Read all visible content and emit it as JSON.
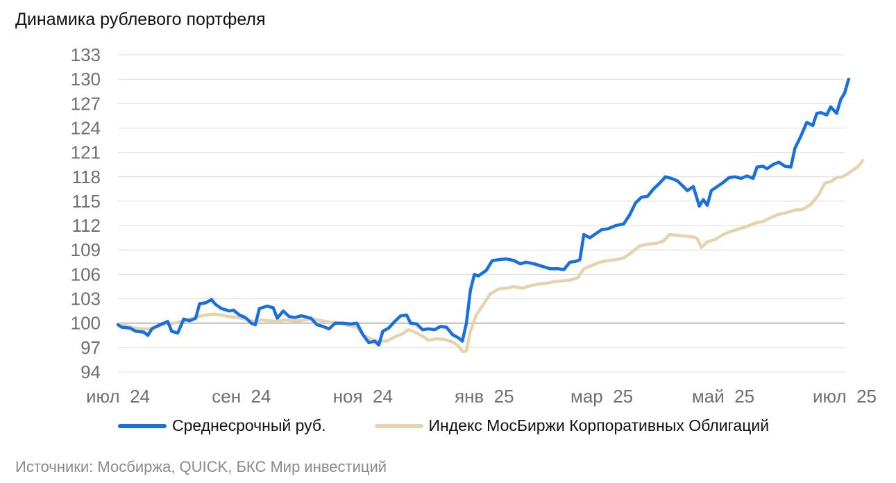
{
  "title": "Динамика рублевого портфеля",
  "source": "Источники: Мосбиржа, QUICK, БКС Мир инвестиций",
  "colors": {
    "series1": "#1a6fe0",
    "series2": "#e6d3ad",
    "grid": "#dcdcdc",
    "baseline": "#c9c9c9",
    "tick": "#6f6f6f"
  },
  "chart_data": {
    "type": "line",
    "title": "Динамика рублевого портфеля",
    "xlabel": "",
    "ylabel": "",
    "ylim": [
      94,
      133
    ],
    "yticks": [
      94,
      97,
      100,
      103,
      106,
      109,
      112,
      115,
      118,
      121,
      124,
      127,
      130,
      133
    ],
    "xlim": [
      "2024-07-01",
      "2025-07-01"
    ],
    "xticks": [
      {
        "date": "2024-07-01",
        "label": "июл  24"
      },
      {
        "date": "2024-09-01",
        "label": "сен  24"
      },
      {
        "date": "2024-11-01",
        "label": "ноя  24"
      },
      {
        "date": "2025-01-01",
        "label": "янв  25"
      },
      {
        "date": "2025-03-01",
        "label": "мар  25"
      },
      {
        "date": "2025-05-01",
        "label": "май  25"
      },
      {
        "date": "2025-07-01",
        "label": "июл  25"
      }
    ],
    "baseline": 100,
    "grid": true,
    "legend_position": "bottom",
    "series": [
      {
        "name": "Среднесрочный руб.",
        "color": "#1a6fe0",
        "points": [
          [
            "2024-07-01",
            99.8
          ],
          [
            "2024-07-03",
            99.5
          ],
          [
            "2024-07-07",
            99.4
          ],
          [
            "2024-07-10",
            99.0
          ],
          [
            "2024-07-14",
            98.9
          ],
          [
            "2024-07-16",
            98.5
          ],
          [
            "2024-07-18",
            99.3
          ],
          [
            "2024-07-22",
            99.8
          ],
          [
            "2024-07-26",
            100.2
          ],
          [
            "2024-07-28",
            99.0
          ],
          [
            "2024-07-31",
            98.8
          ],
          [
            "2024-08-03",
            100.5
          ],
          [
            "2024-08-06",
            100.3
          ],
          [
            "2024-08-09",
            100.6
          ],
          [
            "2024-08-11",
            102.4
          ],
          [
            "2024-08-14",
            102.5
          ],
          [
            "2024-08-17",
            102.9
          ],
          [
            "2024-08-19",
            102.3
          ],
          [
            "2024-08-22",
            101.8
          ],
          [
            "2024-08-26",
            101.5
          ],
          [
            "2024-08-28",
            101.6
          ],
          [
            "2024-08-31",
            101.0
          ],
          [
            "2024-09-03",
            100.7
          ],
          [
            "2024-09-06",
            100.0
          ],
          [
            "2024-09-08",
            99.8
          ],
          [
            "2024-09-10",
            101.8
          ],
          [
            "2024-09-14",
            102.1
          ],
          [
            "2024-09-17",
            101.9
          ],
          [
            "2024-09-19",
            100.6
          ],
          [
            "2024-09-22",
            101.5
          ],
          [
            "2024-09-25",
            100.8
          ],
          [
            "2024-09-28",
            100.7
          ],
          [
            "2024-10-01",
            100.9
          ],
          [
            "2024-10-03",
            100.8
          ],
          [
            "2024-10-06",
            100.6
          ],
          [
            "2024-10-09",
            99.8
          ],
          [
            "2024-10-12",
            99.6
          ],
          [
            "2024-10-15",
            99.3
          ],
          [
            "2024-10-18",
            100.0
          ],
          [
            "2024-10-22",
            100.0
          ],
          [
            "2024-10-26",
            99.9
          ],
          [
            "2024-10-29",
            100.0
          ],
          [
            "2024-11-01",
            98.6
          ],
          [
            "2024-11-04",
            97.6
          ],
          [
            "2024-11-07",
            97.8
          ],
          [
            "2024-11-09",
            97.3
          ],
          [
            "2024-11-11",
            99.0
          ],
          [
            "2024-11-14",
            99.4
          ],
          [
            "2024-11-17",
            100.2
          ],
          [
            "2024-11-20",
            100.9
          ],
          [
            "2024-11-23",
            101.0
          ],
          [
            "2024-11-25",
            100.0
          ],
          [
            "2024-11-28",
            99.9
          ],
          [
            "2024-12-01",
            99.2
          ],
          [
            "2024-12-04",
            99.3
          ],
          [
            "2024-12-07",
            99.2
          ],
          [
            "2024-12-10",
            99.6
          ],
          [
            "2024-12-13",
            99.5
          ],
          [
            "2024-12-16",
            98.6
          ],
          [
            "2024-12-19",
            98.2
          ],
          [
            "2024-12-21",
            97.8
          ],
          [
            "2024-12-23",
            100.0
          ],
          [
            "2024-12-25",
            104.0
          ],
          [
            "2024-12-27",
            106.0
          ],
          [
            "2024-12-29",
            105.8
          ],
          [
            "2025-01-02",
            106.5
          ],
          [
            "2025-01-05",
            107.7
          ],
          [
            "2025-01-08",
            107.8
          ],
          [
            "2025-01-12",
            107.9
          ],
          [
            "2025-01-16",
            107.7
          ],
          [
            "2025-01-19",
            107.3
          ],
          [
            "2025-01-22",
            107.5
          ],
          [
            "2025-01-26",
            107.3
          ],
          [
            "2025-01-30",
            107.0
          ],
          [
            "2025-02-03",
            106.7
          ],
          [
            "2025-02-07",
            106.7
          ],
          [
            "2025-02-10",
            106.6
          ],
          [
            "2025-02-13",
            107.5
          ],
          [
            "2025-02-16",
            107.6
          ],
          [
            "2025-02-18",
            107.8
          ],
          [
            "2025-02-20",
            110.9
          ],
          [
            "2025-02-23",
            110.5
          ],
          [
            "2025-02-26",
            111.0
          ],
          [
            "2025-03-01",
            111.5
          ],
          [
            "2025-03-04",
            111.6
          ],
          [
            "2025-03-08",
            112.0
          ],
          [
            "2025-03-12",
            112.2
          ],
          [
            "2025-03-15",
            113.3
          ],
          [
            "2025-03-18",
            114.8
          ],
          [
            "2025-03-21",
            115.5
          ],
          [
            "2025-03-24",
            115.6
          ],
          [
            "2025-03-27",
            116.5
          ],
          [
            "2025-03-30",
            117.2
          ],
          [
            "2025-04-02",
            118.0
          ],
          [
            "2025-04-05",
            117.8
          ],
          [
            "2025-04-08",
            117.5
          ],
          [
            "2025-04-11",
            116.8
          ],
          [
            "2025-04-13",
            116.3
          ],
          [
            "2025-04-16",
            116.8
          ],
          [
            "2025-04-19",
            114.4
          ],
          [
            "2025-04-21",
            115.2
          ],
          [
            "2025-04-23",
            114.5
          ],
          [
            "2025-04-25",
            116.3
          ],
          [
            "2025-04-28",
            116.8
          ],
          [
            "2025-05-01",
            117.3
          ],
          [
            "2025-05-04",
            117.9
          ],
          [
            "2025-05-07",
            118.0
          ],
          [
            "2025-05-10",
            117.8
          ],
          [
            "2025-05-13",
            118.1
          ],
          [
            "2025-05-16",
            117.8
          ],
          [
            "2025-05-18",
            119.2
          ],
          [
            "2025-05-21",
            119.3
          ],
          [
            "2025-05-23",
            119.0
          ],
          [
            "2025-05-26",
            119.5
          ],
          [
            "2025-05-29",
            119.8
          ],
          [
            "2025-06-01",
            119.3
          ],
          [
            "2025-06-04",
            119.2
          ],
          [
            "2025-06-06",
            121.5
          ],
          [
            "2025-06-09",
            123.0
          ],
          [
            "2025-06-12",
            124.7
          ],
          [
            "2025-06-15",
            124.3
          ],
          [
            "2025-06-17",
            125.8
          ],
          [
            "2025-06-19",
            125.9
          ],
          [
            "2025-06-22",
            125.6
          ],
          [
            "2025-06-24",
            126.6
          ],
          [
            "2025-06-27",
            125.8
          ],
          [
            "2025-06-29",
            127.5
          ],
          [
            "2025-07-01",
            128.3
          ],
          [
            "2025-07-03",
            130.0
          ]
        ]
      },
      {
        "name": "Индекс МосБиржи Корпоративных Облигаций",
        "color": "#e6d3ad",
        "points": [
          [
            "2024-07-01",
            99.9
          ],
          [
            "2024-07-05",
            99.7
          ],
          [
            "2024-07-09",
            99.4
          ],
          [
            "2024-07-13",
            99.3
          ],
          [
            "2024-07-17",
            99.3
          ],
          [
            "2024-07-21",
            99.6
          ],
          [
            "2024-07-25",
            99.9
          ],
          [
            "2024-07-29",
            100.0
          ],
          [
            "2024-08-02",
            100.2
          ],
          [
            "2024-08-06",
            100.5
          ],
          [
            "2024-08-10",
            100.8
          ],
          [
            "2024-08-14",
            101.0
          ],
          [
            "2024-08-18",
            101.1
          ],
          [
            "2024-08-22",
            101.0
          ],
          [
            "2024-08-26",
            100.8
          ],
          [
            "2024-08-30",
            100.7
          ],
          [
            "2024-09-03",
            100.5
          ],
          [
            "2024-09-07",
            100.2
          ],
          [
            "2024-09-11",
            100.4
          ],
          [
            "2024-09-15",
            100.3
          ],
          [
            "2024-09-19",
            100.2
          ],
          [
            "2024-09-23",
            100.4
          ],
          [
            "2024-09-27",
            100.3
          ],
          [
            "2024-10-01",
            100.3
          ],
          [
            "2024-10-05",
            100.5
          ],
          [
            "2024-10-09",
            100.4
          ],
          [
            "2024-10-13",
            100.2
          ],
          [
            "2024-10-17",
            100.1
          ],
          [
            "2024-10-21",
            100.0
          ],
          [
            "2024-10-25",
            99.7
          ],
          [
            "2024-10-29",
            99.5
          ],
          [
            "2024-11-01",
            98.6
          ],
          [
            "2024-11-05",
            98.0
          ],
          [
            "2024-11-09",
            97.8
          ],
          [
            "2024-11-13",
            97.8
          ],
          [
            "2024-11-17",
            98.3
          ],
          [
            "2024-11-21",
            98.7
          ],
          [
            "2024-11-24",
            99.2
          ],
          [
            "2024-11-28",
            98.8
          ],
          [
            "2024-12-01",
            98.4
          ],
          [
            "2024-12-04",
            97.9
          ],
          [
            "2024-12-08",
            98.1
          ],
          [
            "2024-12-12",
            98.0
          ],
          [
            "2024-12-16",
            97.7
          ],
          [
            "2024-12-19",
            97.2
          ],
          [
            "2024-12-21",
            96.5
          ],
          [
            "2024-12-23",
            96.6
          ],
          [
            "2024-12-25",
            99.0
          ],
          [
            "2024-12-28",
            101.0
          ],
          [
            "2025-01-01",
            102.5
          ],
          [
            "2025-01-04",
            103.6
          ],
          [
            "2025-01-08",
            104.2
          ],
          [
            "2025-01-12",
            104.3
          ],
          [
            "2025-01-16",
            104.5
          ],
          [
            "2025-01-20",
            104.3
          ],
          [
            "2025-01-24",
            104.6
          ],
          [
            "2025-01-28",
            104.8
          ],
          [
            "2025-02-01",
            104.9
          ],
          [
            "2025-02-05",
            105.1
          ],
          [
            "2025-02-09",
            105.2
          ],
          [
            "2025-02-13",
            105.3
          ],
          [
            "2025-02-17",
            105.6
          ],
          [
            "2025-02-20",
            106.7
          ],
          [
            "2025-02-24",
            107.1
          ],
          [
            "2025-02-28",
            107.5
          ],
          [
            "2025-03-04",
            107.7
          ],
          [
            "2025-03-08",
            107.8
          ],
          [
            "2025-03-12",
            108.0
          ],
          [
            "2025-03-16",
            108.7
          ],
          [
            "2025-03-20",
            109.5
          ],
          [
            "2025-03-24",
            109.7
          ],
          [
            "2025-03-28",
            109.8
          ],
          [
            "2025-04-01",
            110.1
          ],
          [
            "2025-04-04",
            110.9
          ],
          [
            "2025-04-08",
            110.8
          ],
          [
            "2025-04-12",
            110.7
          ],
          [
            "2025-04-16",
            110.6
          ],
          [
            "2025-04-18",
            110.4
          ],
          [
            "2025-04-20",
            109.3
          ],
          [
            "2025-04-23",
            110.0
          ],
          [
            "2025-04-27",
            110.3
          ],
          [
            "2025-05-01",
            110.9
          ],
          [
            "2025-05-05",
            111.3
          ],
          [
            "2025-05-09",
            111.6
          ],
          [
            "2025-05-13",
            111.9
          ],
          [
            "2025-05-17",
            112.3
          ],
          [
            "2025-05-21",
            112.5
          ],
          [
            "2025-05-25",
            113.0
          ],
          [
            "2025-05-29",
            113.4
          ],
          [
            "2025-06-02",
            113.6
          ],
          [
            "2025-06-06",
            113.9
          ],
          [
            "2025-06-10",
            114.0
          ],
          [
            "2025-06-14",
            114.6
          ],
          [
            "2025-06-18",
            115.8
          ],
          [
            "2025-06-21",
            117.2
          ],
          [
            "2025-06-24",
            117.4
          ],
          [
            "2025-06-27",
            117.9
          ],
          [
            "2025-06-30",
            118.0
          ],
          [
            "2025-07-02",
            118.3
          ],
          [
            "2025-07-05",
            118.8
          ],
          [
            "2025-07-08",
            119.3
          ],
          [
            "2025-07-10",
            120.0
          ]
        ]
      }
    ]
  }
}
